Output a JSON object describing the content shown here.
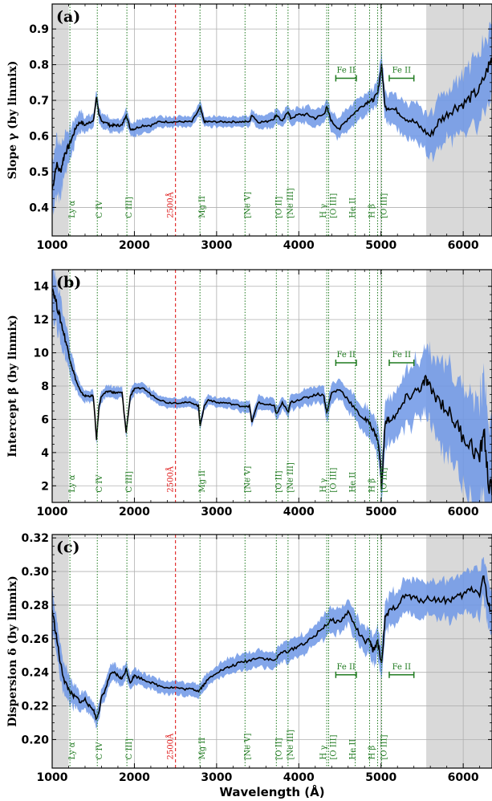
{
  "figure": {
    "x_axis_label": "Wavelength (Å)"
  },
  "colors": {
    "band": "#6d96e6",
    "median": "#000000",
    "line_marker": "#1f7a1f",
    "ref_line": "#e02020",
    "shade": "#d9d9d9"
  },
  "chart_data": [
    {
      "type": "line",
      "panel_label": "(a)",
      "ylabel": "Slope γ (by linmix)",
      "xlabel": "",
      "xlim": [
        1000,
        6350
      ],
      "ylim": [
        0.32,
        0.97
      ],
      "xticks": [
        1000,
        2000,
        3000,
        4000,
        5000,
        6000
      ],
      "yticks": [
        0.4,
        0.5,
        0.6,
        0.7,
        0.8,
        0.9
      ],
      "grid": true,
      "shaded_regions": [
        [
          1000,
          1200
        ],
        [
          5550,
          6350
        ]
      ],
      "series": [
        {
          "x": [
            1000,
            1050,
            1100,
            1150,
            1200,
            1250,
            1300,
            1350,
            1400,
            1450,
            1500,
            1540,
            1570,
            1600,
            1650,
            1700,
            1750,
            1800,
            1850,
            1900,
            1950,
            2000,
            2100,
            2200,
            2300,
            2400,
            2500,
            2600,
            2700,
            2800,
            2850,
            2900,
            3000,
            3100,
            3200,
            3300,
            3400,
            3430,
            3500,
            3600,
            3700,
            3730,
            3800,
            3870,
            3900,
            4000,
            4100,
            4200,
            4300,
            4340,
            4400,
            4500,
            4600,
            4700,
            4800,
            4860,
            4900,
            4960,
            5007,
            5050,
            5100,
            5200,
            5300,
            5400,
            5500,
            5600,
            5700,
            5800,
            5900,
            6000,
            6100,
            6200,
            6300,
            6350
          ],
          "values": [
            0.45,
            0.52,
            0.5,
            0.55,
            0.57,
            0.6,
            0.63,
            0.64,
            0.63,
            0.64,
            0.64,
            0.71,
            0.66,
            0.64,
            0.64,
            0.63,
            0.63,
            0.63,
            0.63,
            0.66,
            0.62,
            0.62,
            0.63,
            0.63,
            0.64,
            0.64,
            0.64,
            0.64,
            0.64,
            0.68,
            0.64,
            0.64,
            0.64,
            0.64,
            0.64,
            0.64,
            0.64,
            0.66,
            0.64,
            0.64,
            0.65,
            0.66,
            0.64,
            0.67,
            0.65,
            0.66,
            0.66,
            0.65,
            0.66,
            0.68,
            0.64,
            0.62,
            0.65,
            0.67,
            0.69,
            0.7,
            0.7,
            0.72,
            0.8,
            0.68,
            0.68,
            0.67,
            0.65,
            0.64,
            0.62,
            0.6,
            0.64,
            0.66,
            0.68,
            0.69,
            0.71,
            0.73,
            0.79,
            0.82
          ],
          "band_halfwidth": [
            0.08,
            0.08,
            0.07,
            0.06,
            0.05,
            0.04,
            0.03,
            0.03,
            0.02,
            0.02,
            0.02,
            0.02,
            0.02,
            0.02,
            0.02,
            0.02,
            0.02,
            0.02,
            0.02,
            0.02,
            0.02,
            0.02,
            0.02,
            0.02,
            0.015,
            0.015,
            0.015,
            0.015,
            0.015,
            0.02,
            0.015,
            0.015,
            0.015,
            0.015,
            0.015,
            0.015,
            0.015,
            0.015,
            0.02,
            0.02,
            0.02,
            0.02,
            0.02,
            0.02,
            0.02,
            0.02,
            0.025,
            0.025,
            0.025,
            0.025,
            0.03,
            0.03,
            0.03,
            0.03,
            0.03,
            0.03,
            0.03,
            0.035,
            0.04,
            0.04,
            0.04,
            0.045,
            0.05,
            0.05,
            0.05,
            0.06,
            0.07,
            0.07,
            0.08,
            0.08,
            0.09,
            0.1,
            0.1,
            0.1
          ]
        }
      ],
      "fe_ii_markers": [
        [
          4450,
          4700
        ],
        [
          5100,
          5400
        ]
      ],
      "fe_ii_label": "Fe II",
      "fe_ii_level": 0.762,
      "line_label_y": 0.37
    },
    {
      "type": "line",
      "panel_label": "(b)",
      "ylabel": "Intercept β (by linmix)",
      "xlabel": "",
      "xlim": [
        1000,
        6350
      ],
      "ylim": [
        1.0,
        15.0
      ],
      "xticks": [
        1000,
        2000,
        3000,
        4000,
        5000,
        6000
      ],
      "yticks": [
        2,
        4,
        6,
        8,
        10,
        12,
        14
      ],
      "grid": true,
      "shaded_regions": [
        [
          1000,
          1200
        ],
        [
          5550,
          6350
        ]
      ],
      "series": [
        {
          "x": [
            1000,
            1050,
            1100,
            1150,
            1200,
            1250,
            1300,
            1350,
            1400,
            1450,
            1500,
            1540,
            1570,
            1600,
            1650,
            1700,
            1750,
            1800,
            1850,
            1900,
            1950,
            2000,
            2100,
            2200,
            2300,
            2400,
            2500,
            2600,
            2700,
            2780,
            2800,
            2850,
            2900,
            3000,
            3100,
            3200,
            3300,
            3400,
            3430,
            3500,
            3600,
            3700,
            3730,
            3800,
            3870,
            3900,
            4000,
            4100,
            4200,
            4300,
            4340,
            4400,
            4500,
            4600,
            4700,
            4800,
            4860,
            4900,
            4960,
            4990,
            5007,
            5050,
            5100,
            5200,
            5300,
            5400,
            5500,
            5550,
            5600,
            5700,
            5800,
            5900,
            6000,
            6100,
            6200,
            6250,
            6300,
            6350
          ],
          "values": [
            14.0,
            13.0,
            12.0,
            11.0,
            10.0,
            9.0,
            8.2,
            7.6,
            7.4,
            7.4,
            7.4,
            4.8,
            6.8,
            7.4,
            7.6,
            7.7,
            7.6,
            7.6,
            7.6,
            5.2,
            7.4,
            7.8,
            7.9,
            7.5,
            7.2,
            7.0,
            7.0,
            7.0,
            7.0,
            6.8,
            5.6,
            6.8,
            7.2,
            7.0,
            7.0,
            6.9,
            6.8,
            6.8,
            5.8,
            7.0,
            6.9,
            6.8,
            6.3,
            7.0,
            6.4,
            7.0,
            7.2,
            7.3,
            7.5,
            7.5,
            6.4,
            7.6,
            7.8,
            7.2,
            6.5,
            6.0,
            5.8,
            5.4,
            4.8,
            3.5,
            1.8,
            5.8,
            6.0,
            6.3,
            7.2,
            7.6,
            8.0,
            8.4,
            7.8,
            7.2,
            6.6,
            5.8,
            5.0,
            4.4,
            3.6,
            5.5,
            2.4,
            1.5
          ],
          "band_halfwidth": [
            1.6,
            1.5,
            1.3,
            1.1,
            0.9,
            0.7,
            0.5,
            0.4,
            0.35,
            0.35,
            0.35,
            0.35,
            0.35,
            0.35,
            0.35,
            0.35,
            0.35,
            0.35,
            0.35,
            0.35,
            0.35,
            0.35,
            0.3,
            0.3,
            0.3,
            0.3,
            0.3,
            0.3,
            0.3,
            0.3,
            0.3,
            0.3,
            0.3,
            0.3,
            0.3,
            0.3,
            0.35,
            0.35,
            0.35,
            0.4,
            0.4,
            0.4,
            0.4,
            0.4,
            0.4,
            0.45,
            0.45,
            0.5,
            0.5,
            0.55,
            0.55,
            0.6,
            0.6,
            0.65,
            0.7,
            0.8,
            0.85,
            0.9,
            1.0,
            1.1,
            1.2,
            1.3,
            1.4,
            1.5,
            1.7,
            1.8,
            2.0,
            2.1,
            2.2,
            2.4,
            2.6,
            2.8,
            3.0,
            3.2,
            3.4,
            3.5,
            3.6,
            3.6
          ]
        }
      ],
      "fe_ii_markers": [
        [
          4450,
          4700
        ],
        [
          5100,
          5400
        ]
      ],
      "fe_ii_label": "Fe II",
      "fe_ii_level": 9.4,
      "line_label_y": 1.6
    },
    {
      "type": "line",
      "panel_label": "(c)",
      "ylabel": "Dispersion δ (by linmix)",
      "xlabel": "Wavelength (Å)",
      "xlim": [
        1000,
        6350
      ],
      "ylim": [
        0.183,
        0.322
      ],
      "xticks": [
        1000,
        2000,
        3000,
        4000,
        5000,
        6000
      ],
      "yticks": [
        0.2,
        0.22,
        0.24,
        0.26,
        0.28,
        0.3,
        0.32
      ],
      "grid": true,
      "shaded_regions": [
        [
          1000,
          1200
        ],
        [
          5550,
          6350
        ]
      ],
      "series": [
        {
          "x": [
            1000,
            1050,
            1100,
            1150,
            1200,
            1250,
            1300,
            1350,
            1400,
            1450,
            1500,
            1540,
            1570,
            1600,
            1650,
            1700,
            1750,
            1800,
            1850,
            1900,
            1950,
            2000,
            2100,
            2200,
            2300,
            2400,
            2500,
            2600,
            2700,
            2780,
            2800,
            2850,
            2900,
            3000,
            3100,
            3200,
            3300,
            3400,
            3500,
            3600,
            3700,
            3800,
            3900,
            4000,
            4100,
            4200,
            4300,
            4400,
            4500,
            4600,
            4700,
            4800,
            4860,
            4900,
            4960,
            5007,
            5050,
            5100,
            5200,
            5300,
            5400,
            5500,
            5600,
            5700,
            5800,
            5900,
            6000,
            6100,
            6200,
            6250,
            6300,
            6350
          ],
          "values": [
            0.277,
            0.262,
            0.245,
            0.235,
            0.23,
            0.226,
            0.225,
            0.222,
            0.224,
            0.22,
            0.218,
            0.212,
            0.217,
            0.225,
            0.23,
            0.238,
            0.24,
            0.238,
            0.236,
            0.242,
            0.234,
            0.238,
            0.236,
            0.234,
            0.232,
            0.231,
            0.231,
            0.23,
            0.23,
            0.229,
            0.23,
            0.233,
            0.236,
            0.24,
            0.242,
            0.244,
            0.246,
            0.247,
            0.249,
            0.248,
            0.247,
            0.252,
            0.253,
            0.256,
            0.258,
            0.262,
            0.267,
            0.271,
            0.27,
            0.276,
            0.266,
            0.258,
            0.259,
            0.253,
            0.258,
            0.245,
            0.272,
            0.276,
            0.28,
            0.286,
            0.284,
            0.283,
            0.284,
            0.283,
            0.283,
            0.284,
            0.286,
            0.29,
            0.287,
            0.298,
            0.28,
            0.277
          ],
          "band_halfwidth": [
            0.012,
            0.011,
            0.01,
            0.009,
            0.008,
            0.007,
            0.006,
            0.006,
            0.005,
            0.005,
            0.005,
            0.005,
            0.005,
            0.005,
            0.005,
            0.005,
            0.005,
            0.005,
            0.005,
            0.005,
            0.005,
            0.005,
            0.004,
            0.004,
            0.004,
            0.004,
            0.004,
            0.004,
            0.004,
            0.004,
            0.004,
            0.004,
            0.004,
            0.004,
            0.005,
            0.005,
            0.005,
            0.005,
            0.005,
            0.005,
            0.005,
            0.006,
            0.006,
            0.006,
            0.006,
            0.006,
            0.007,
            0.007,
            0.007,
            0.007,
            0.008,
            0.008,
            0.008,
            0.009,
            0.009,
            0.01,
            0.01,
            0.01,
            0.01,
            0.01,
            0.011,
            0.011,
            0.011,
            0.011,
            0.012,
            0.012,
            0.012,
            0.013,
            0.013,
            0.013,
            0.014,
            0.014
          ]
        }
      ],
      "fe_ii_markers": [
        [
          4450,
          4700
        ],
        [
          5100,
          5400
        ]
      ],
      "fe_ii_label": "Fe II",
      "fe_ii_level": 0.2385,
      "line_label_y": 0.188
    }
  ],
  "emission_lines": [
    {
      "label": "Ly α",
      "x": 1216
    },
    {
      "label": "C IV",
      "x": 1549
    },
    {
      "label": "C III]",
      "x": 1909
    },
    {
      "label": "Mg II",
      "x": 2798
    },
    {
      "label": "[Ne V]",
      "x": 3346
    },
    {
      "label": "[O II]",
      "x": 3727
    },
    {
      "label": "[Ne III]",
      "x": 3869
    },
    {
      "label": "H γ",
      "x": 4340
    },
    {
      "label": "[O III]",
      "x": 4363
    },
    {
      "label": "He II",
      "x": 4686
    },
    {
      "label": "H β",
      "x": 4861
    },
    {
      "label": "[O III]",
      "x": 5007
    }
  ],
  "extra_lines": [
    4959
  ],
  "reference_line": {
    "label": "2500Å",
    "x": 2500
  }
}
